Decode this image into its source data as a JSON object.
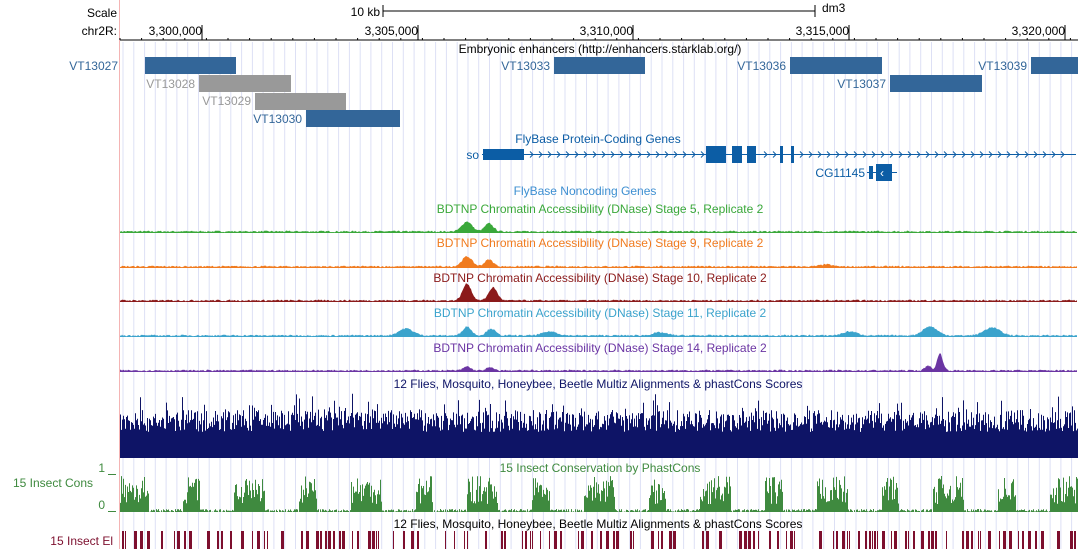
{
  "browser": {
    "ruler": {
      "scale_label": "Scale",
      "chrom_label": "chr2R:",
      "scale_bar_text": "10 kb",
      "assembly": "dm3",
      "positions": [
        "3,300,000",
        "3,305,000",
        "3,310,000",
        "3,315,000",
        "3,320,000"
      ]
    },
    "tracks": {
      "enhancers": {
        "title": "Embryonic enhancers (http://enhancers.starklab.org/)",
        "items": [
          {
            "name": "VT13027",
            "color": "#336699"
          },
          {
            "name": "VT13028",
            "color": "#999999"
          },
          {
            "name": "VT13029",
            "color": "#999999"
          },
          {
            "name": "VT13030",
            "color": "#336699"
          },
          {
            "name": "VT13033",
            "color": "#336699"
          },
          {
            "name": "VT13036",
            "color": "#336699"
          },
          {
            "name": "VT13037",
            "color": "#336699"
          },
          {
            "name": "VT13039",
            "color": "#336699"
          }
        ]
      },
      "protein_genes": {
        "title": "FlyBase Protein-Coding Genes",
        "color": "#0c5da5",
        "genes": [
          "so",
          "CG11145"
        ]
      },
      "noncoding_genes": {
        "title": "FlyBase Noncoding Genes",
        "color": "#3d8fd1"
      },
      "dnase": [
        {
          "title": "BDTNP Chromatin Accessibility (DNase) Stage 5, Replicate 2",
          "color": "#3aa83a"
        },
        {
          "title": "BDTNP Chromatin Accessibility (DNase) Stage 9, Replicate 2",
          "color": "#f07b1f"
        },
        {
          "title": "BDTNP Chromatin Accessibility (DNase) Stage 10, Replicate 2",
          "color": "#8b1a1a"
        },
        {
          "title": "BDTNP Chromatin Accessibility (DNase) Stage 11, Replicate 2",
          "color": "#3ba3cc"
        },
        {
          "title": "BDTNP Chromatin Accessibility (DNase) Stage 14, Replicate 2",
          "color": "#6b35a3"
        }
      ],
      "multiz": {
        "title": "12 Flies, Mosquito, Honeybee, Beetle Multiz Alignments & phastCons Scores",
        "color": "#0e1466"
      },
      "insect_cons": {
        "title": "15 Insect Conservation by PhastCons",
        "side_label": "15 Insect Cons",
        "color": "#3f8a3f",
        "axis_max": "1",
        "axis_min": "0"
      },
      "insect_el": {
        "title": "12 Flies, Mosquito, Honeybee, Beetle Multiz Alignments & phastCons Scores",
        "side_label": "15 Insect El",
        "color": "#7d0f2e"
      }
    }
  }
}
